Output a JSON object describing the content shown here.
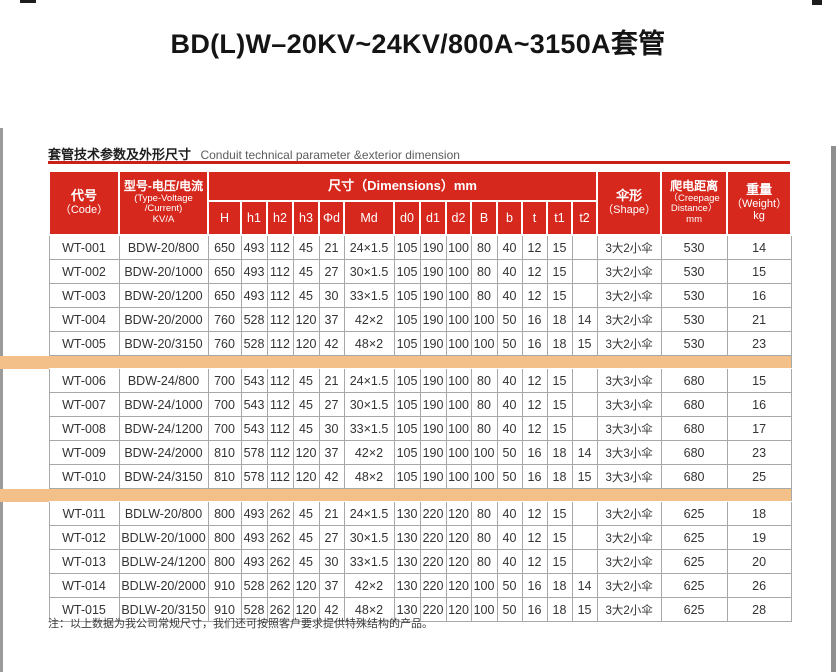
{
  "page": {
    "title": "BD(L)W–20KV~24KV/800A~3150A套管",
    "section_heading_zh": "套管技术参数及外形尺寸",
    "section_heading_en": "Conduit technical parameter &exterior dimension",
    "footnote": "注：以上数据为我公司常规尺寸，我们还可按照客户要求提供特殊结构的产品。"
  },
  "colors": {
    "header_red": "#d7281e",
    "rule_red": "#c9201a",
    "separator_band": "#f4c08a",
    "grid_gray": "#a8a8a8"
  },
  "table": {
    "header": {
      "code_zh": "代号",
      "code_en": "（Code）",
      "model_zh": "型号-电压/电流",
      "model_en1": "(Type-Voltage",
      "model_en2": "/Current)",
      "model_unit": "KV/A",
      "dimensions_label": "尺寸（Dimensions）mm",
      "dim_cols": [
        "H",
        "h1",
        "h2",
        "h3",
        "Φd",
        "Md",
        "d0",
        "d1",
        "d2",
        "B",
        "b",
        "t",
        "t1",
        "t2"
      ],
      "shape_zh": "伞形",
      "shape_en": "（Shape）",
      "creepage_zh": "爬电距离",
      "creepage_en1": "（Creepage",
      "creepage_en2": "Distance）",
      "creepage_unit": "mm",
      "weight_zh": "重量",
      "weight_en": "（Weight）",
      "weight_unit": "kg"
    },
    "groups": [
      {
        "rows": [
          {
            "code": "WT-001",
            "model": "BDW-20/800",
            "dims": [
              "650",
              "493",
              "112",
              "45",
              "21",
              "24×1.5",
              "105",
              "190",
              "100",
              "80",
              "40",
              "12",
              "15",
              ""
            ],
            "shape": "3大2小伞",
            "creepage": "530",
            "weight": "14"
          },
          {
            "code": "WT-002",
            "model": "BDW-20/1000",
            "dims": [
              "650",
              "493",
              "112",
              "45",
              "27",
              "30×1.5",
              "105",
              "190",
              "100",
              "80",
              "40",
              "12",
              "15",
              ""
            ],
            "shape": "3大2小伞",
            "creepage": "530",
            "weight": "15"
          },
          {
            "code": "WT-003",
            "model": "BDW-20/1200",
            "dims": [
              "650",
              "493",
              "112",
              "45",
              "30",
              "33×1.5",
              "105",
              "190",
              "100",
              "80",
              "40",
              "12",
              "15",
              ""
            ],
            "shape": "3大2小伞",
            "creepage": "530",
            "weight": "16"
          },
          {
            "code": "WT-004",
            "model": "BDW-20/2000",
            "dims": [
              "760",
              "528",
              "112",
              "120",
              "37",
              "42×2",
              "105",
              "190",
              "100",
              "100",
              "50",
              "16",
              "18",
              "14"
            ],
            "shape": "3大2小伞",
            "creepage": "530",
            "weight": "21"
          },
          {
            "code": "WT-005",
            "model": "BDW-20/3150",
            "dims": [
              "760",
              "528",
              "112",
              "120",
              "42",
              "48×2",
              "105",
              "190",
              "100",
              "100",
              "50",
              "16",
              "18",
              "15"
            ],
            "shape": "3大2小伞",
            "creepage": "530",
            "weight": "23"
          }
        ]
      },
      {
        "rows": [
          {
            "code": "WT-006",
            "model": "BDW-24/800",
            "dims": [
              "700",
              "543",
              "112",
              "45",
              "21",
              "24×1.5",
              "105",
              "190",
              "100",
              "80",
              "40",
              "12",
              "15",
              ""
            ],
            "shape": "3大3小伞",
            "creepage": "680",
            "weight": "15"
          },
          {
            "code": "WT-007",
            "model": "BDW-24/1000",
            "dims": [
              "700",
              "543",
              "112",
              "45",
              "27",
              "30×1.5",
              "105",
              "190",
              "100",
              "80",
              "40",
              "12",
              "15",
              ""
            ],
            "shape": "3大3小伞",
            "creepage": "680",
            "weight": "16"
          },
          {
            "code": "WT-008",
            "model": "BDW-24/1200",
            "dims": [
              "700",
              "543",
              "112",
              "45",
              "30",
              "33×1.5",
              "105",
              "190",
              "100",
              "80",
              "40",
              "12",
              "15",
              ""
            ],
            "shape": "3大3小伞",
            "creepage": "680",
            "weight": "17"
          },
          {
            "code": "WT-009",
            "model": "BDW-24/2000",
            "dims": [
              "810",
              "578",
              "112",
              "120",
              "37",
              "42×2",
              "105",
              "190",
              "100",
              "100",
              "50",
              "16",
              "18",
              "14"
            ],
            "shape": "3大3小伞",
            "creepage": "680",
            "weight": "23"
          },
          {
            "code": "WT-010",
            "model": "BDW-24/3150",
            "dims": [
              "810",
              "578",
              "112",
              "120",
              "42",
              "48×2",
              "105",
              "190",
              "100",
              "100",
              "50",
              "16",
              "18",
              "15"
            ],
            "shape": "3大3小伞",
            "creepage": "680",
            "weight": "25"
          }
        ]
      },
      {
        "rows": [
          {
            "code": "WT-011",
            "model": "BDLW-20/800",
            "dims": [
              "800",
              "493",
              "262",
              "45",
              "21",
              "24×1.5",
              "130",
              "220",
              "120",
              "80",
              "40",
              "12",
              "15",
              ""
            ],
            "shape": "3大2小伞",
            "creepage": "625",
            "weight": "18"
          },
          {
            "code": "WT-012",
            "model": "BDLW-20/1000",
            "dims": [
              "800",
              "493",
              "262",
              "45",
              "27",
              "30×1.5",
              "130",
              "220",
              "120",
              "80",
              "40",
              "12",
              "15",
              ""
            ],
            "shape": "3大2小伞",
            "creepage": "625",
            "weight": "19"
          },
          {
            "code": "WT-013",
            "model": "BDLW-24/1200",
            "dims": [
              "800",
              "493",
              "262",
              "45",
              "30",
              "33×1.5",
              "130",
              "220",
              "120",
              "80",
              "40",
              "12",
              "15",
              ""
            ],
            "shape": "3大2小伞",
            "creepage": "625",
            "weight": "20"
          },
          {
            "code": "WT-014",
            "model": "BDLW-20/2000",
            "dims": [
              "910",
              "528",
              "262",
              "120",
              "37",
              "42×2",
              "130",
              "220",
              "120",
              "100",
              "50",
              "16",
              "18",
              "14"
            ],
            "shape": "3大2小伞",
            "creepage": "625",
            "weight": "26"
          },
          {
            "code": "WT-015",
            "model": "BDLW-20/3150",
            "dims": [
              "910",
              "528",
              "262",
              "120",
              "42",
              "48×2",
              "130",
              "220",
              "120",
              "100",
              "50",
              "16",
              "18",
              "15"
            ],
            "shape": "3大2小伞",
            "creepage": "625",
            "weight": "28"
          }
        ]
      }
    ]
  }
}
